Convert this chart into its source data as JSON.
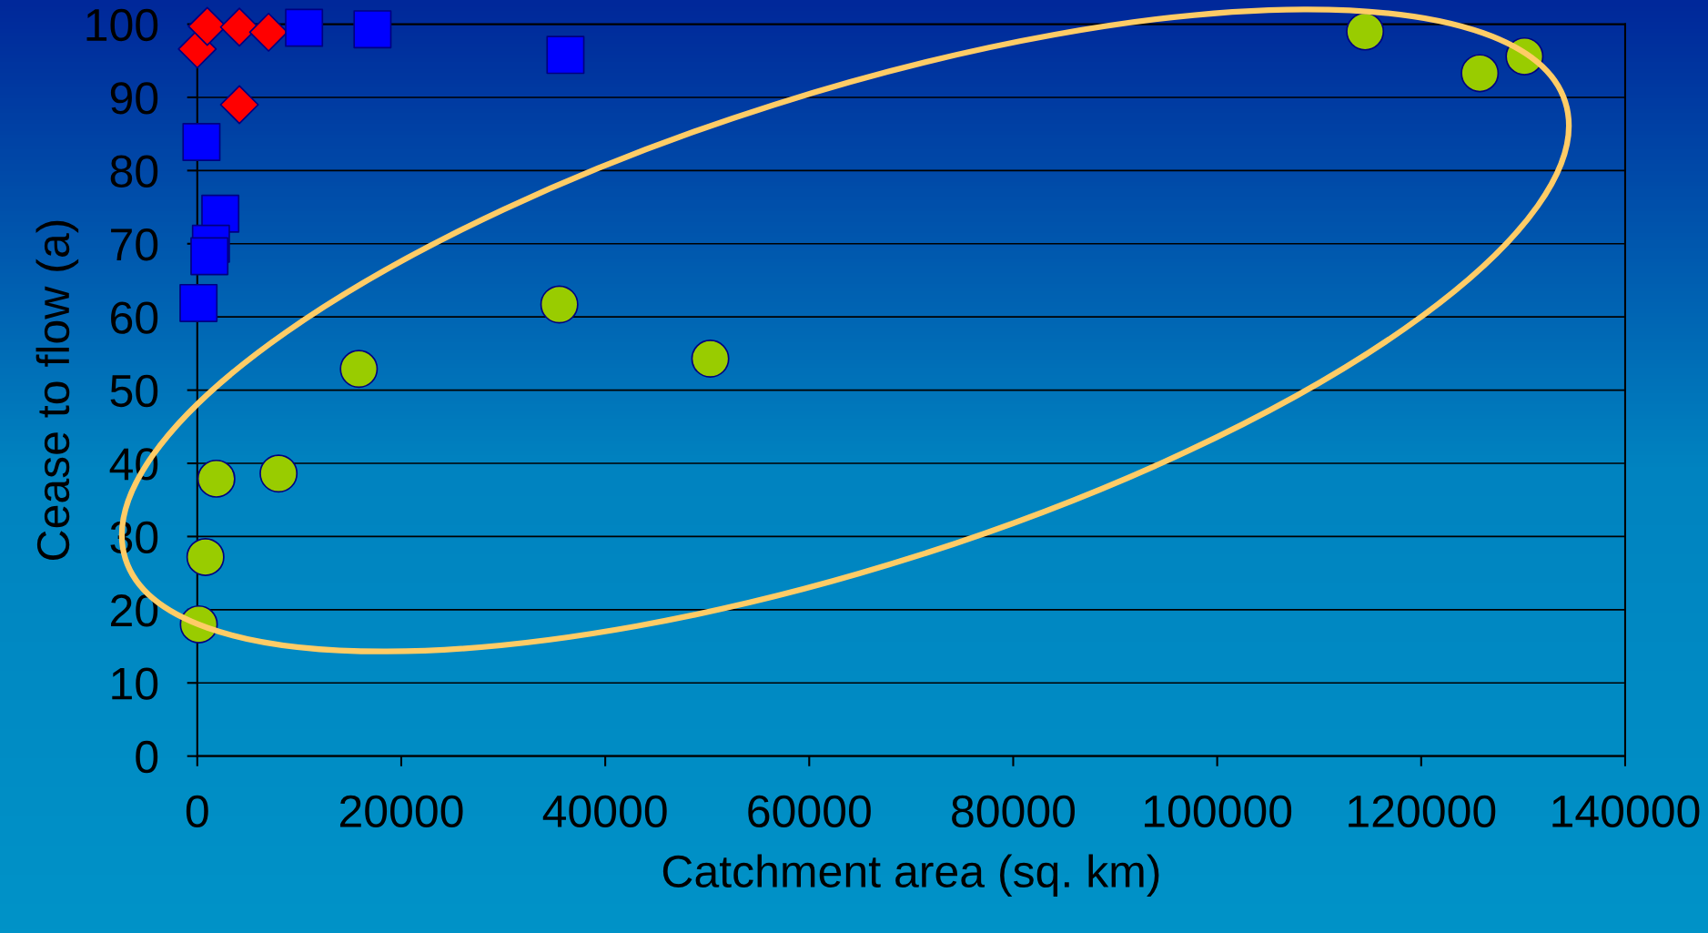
{
  "chart_data": {
    "type": "scatter",
    "xlabel": "Catchment area (sq. km)",
    "ylabel": "Cease to flow (a)",
    "xlim": [
      0,
      140000
    ],
    "xticks": [
      0,
      20000,
      40000,
      60000,
      80000,
      100000,
      120000,
      140000
    ],
    "ylim": [
      0,
      100
    ],
    "yticks": [
      0,
      10,
      20,
      30,
      40,
      50,
      60,
      70,
      80,
      90,
      100
    ],
    "grid": "y",
    "legend": false,
    "series": [
      {
        "color": "#ff0000",
        "marker": "diamond",
        "x": [
          0,
          980,
          4130,
          6990,
          4130
        ],
        "values": [
          96.6,
          99.7,
          99.6,
          98.9,
          89.0
        ]
      },
      {
        "color": "#0000ff",
        "marker": "square",
        "x": [
          10470,
          17180,
          36100,
          410,
          2260,
          1340,
          1190,
          120
        ],
        "values": [
          99.5,
          99.3,
          95.8,
          83.9,
          74.1,
          70.0,
          68.3,
          61.9
        ]
      },
      {
        "color": "#99cc00",
        "marker": "circle",
        "x": [
          35500,
          15840,
          1870,
          7970,
          800,
          150,
          50300,
          114500,
          125750,
          130130
        ],
        "values": [
          61.7,
          52.9,
          37.9,
          38.6,
          27.2,
          18.0,
          54.3,
          99.0,
          93.3,
          95.6
        ]
      }
    ]
  }
}
